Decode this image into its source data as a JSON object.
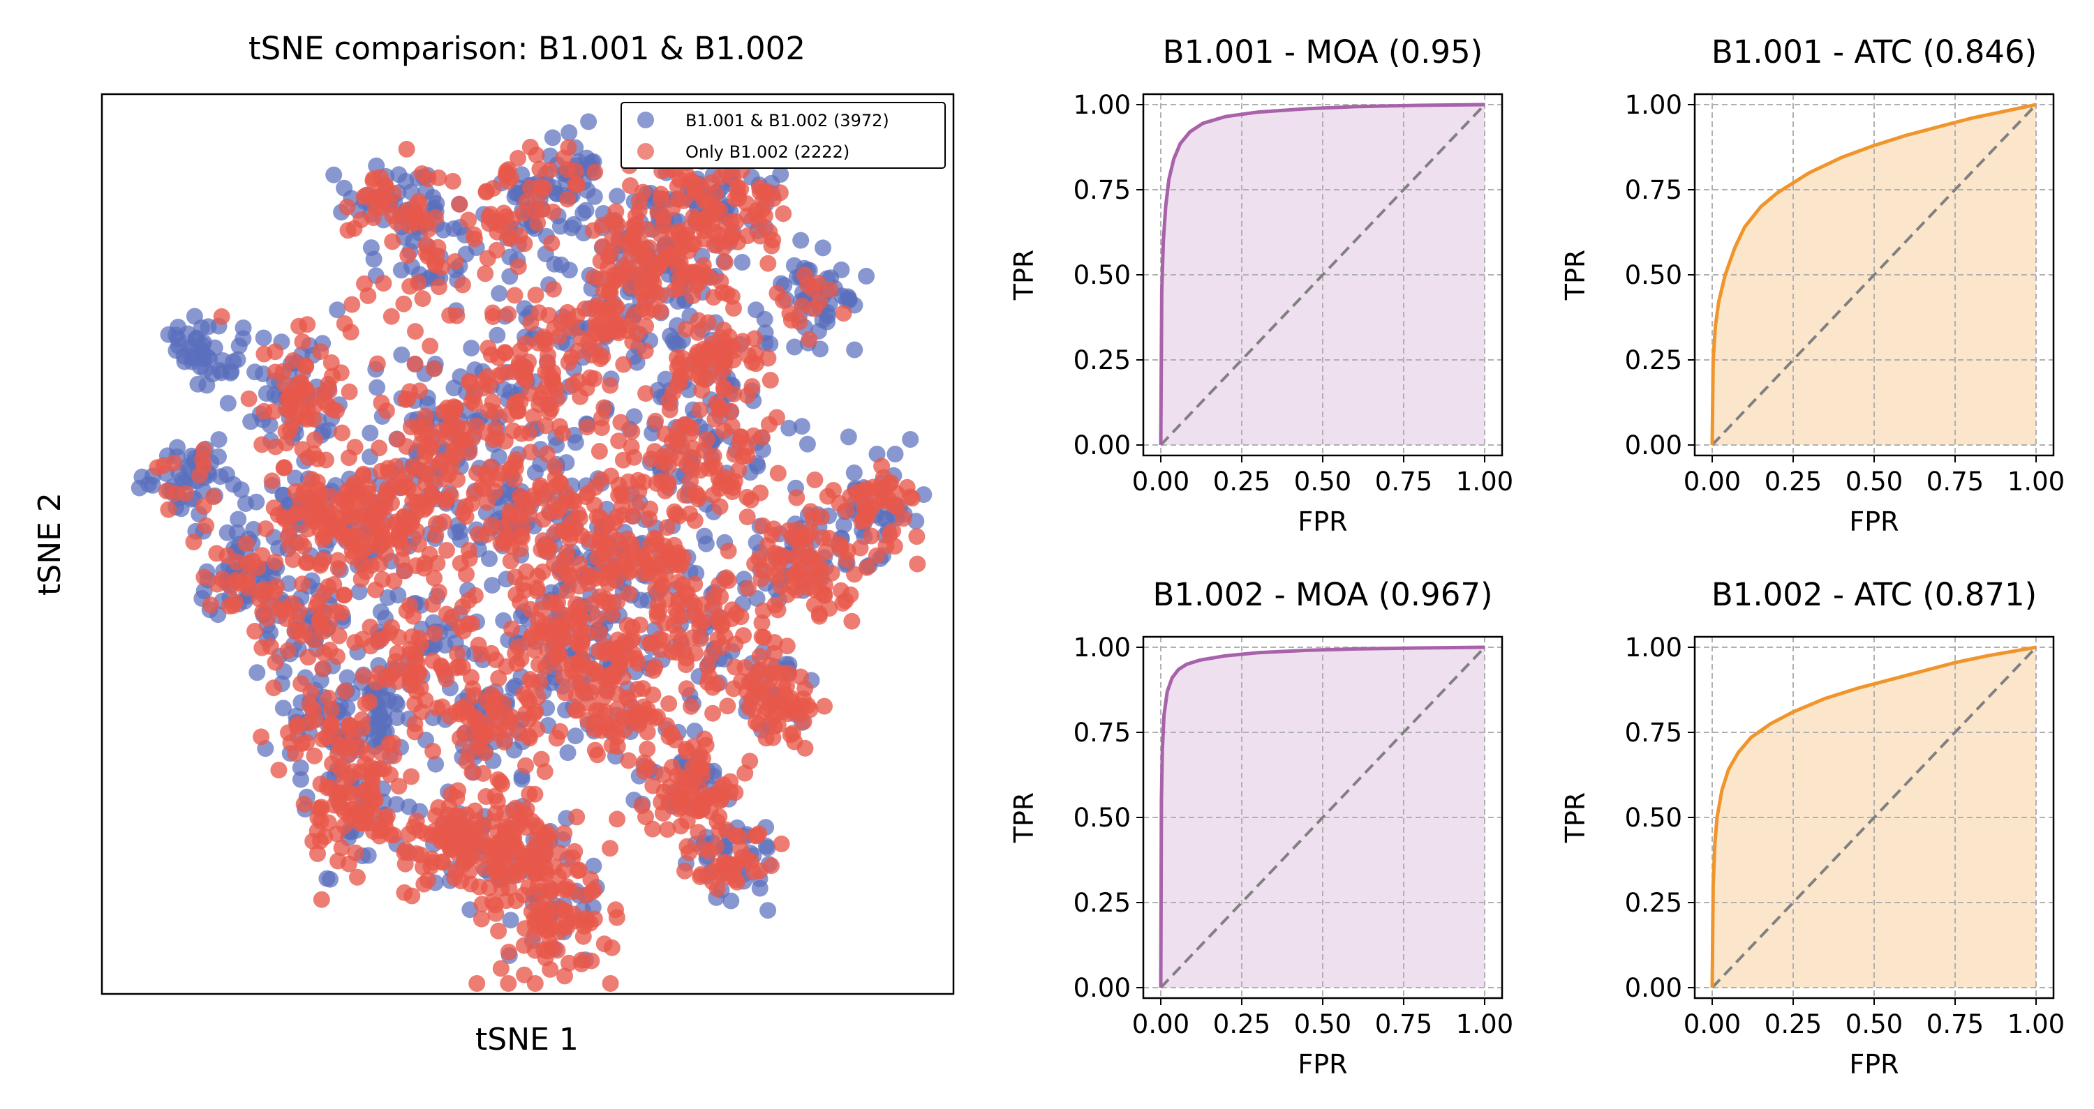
{
  "chart_data": [
    {
      "type": "scatter",
      "title": "tSNE comparison: B1.001 & B1.002",
      "xlabel": "tSNE 1",
      "ylabel": "tSNE 2",
      "ticks_visible": false,
      "legend_placement": "top-right",
      "series": [
        {
          "name": "B1.001 & B1.002 (3972)",
          "count": 3972,
          "color": "#5a6fbd"
        },
        {
          "name": "Only B1.002 (2222)",
          "count": 2222,
          "color": "#e8594a"
        }
      ]
    },
    {
      "type": "line",
      "title": "B1.001 - MOA (0.95)",
      "xlabel": "FPR",
      "ylabel": "TPR",
      "xlim": [
        0,
        1
      ],
      "ylim": [
        0,
        1
      ],
      "xticks": [
        "0.00",
        "0.25",
        "0.50",
        "0.75",
        "1.00"
      ],
      "yticks": [
        "0.00",
        "0.25",
        "0.50",
        "0.75",
        "1.00"
      ],
      "grid": true,
      "color": "#a862aa",
      "fill": "#efe0ef",
      "x": [
        0,
        0.003,
        0.008,
        0.015,
        0.025,
        0.04,
        0.06,
        0.09,
        0.13,
        0.2,
        0.3,
        0.45,
        0.6,
        0.8,
        1.0
      ],
      "y": [
        0,
        0.45,
        0.6,
        0.7,
        0.78,
        0.84,
        0.885,
        0.92,
        0.945,
        0.965,
        0.978,
        0.988,
        0.994,
        0.998,
        1.0
      ]
    },
    {
      "type": "line",
      "title": "B1.001 - ATC (0.846)",
      "xlabel": "FPR",
      "ylabel": "TPR",
      "xlim": [
        0,
        1
      ],
      "ylim": [
        0,
        1
      ],
      "xticks": [
        "0.00",
        "0.25",
        "0.50",
        "0.75",
        "1.00"
      ],
      "yticks": [
        "0.00",
        "0.25",
        "0.50",
        "0.75",
        "1.00"
      ],
      "grid": true,
      "color": "#f0952b",
      "fill": "#fbe6cc",
      "x": [
        0,
        0.003,
        0.01,
        0.02,
        0.04,
        0.07,
        0.1,
        0.15,
        0.2,
        0.3,
        0.4,
        0.5,
        0.6,
        0.7,
        0.8,
        0.9,
        1.0
      ],
      "y": [
        0,
        0.25,
        0.35,
        0.42,
        0.5,
        0.58,
        0.64,
        0.7,
        0.74,
        0.8,
        0.845,
        0.88,
        0.91,
        0.935,
        0.96,
        0.98,
        1.0
      ]
    },
    {
      "type": "line",
      "title": "B1.002 - MOA (0.967)",
      "xlabel": "FPR",
      "ylabel": "TPR",
      "xlim": [
        0,
        1
      ],
      "ylim": [
        0,
        1
      ],
      "xticks": [
        "0.00",
        "0.25",
        "0.50",
        "0.75",
        "1.00"
      ],
      "yticks": [
        "0.00",
        "0.25",
        "0.50",
        "0.75",
        "1.00"
      ],
      "grid": true,
      "color": "#a862aa",
      "fill": "#efe0ef",
      "x": [
        0,
        0.002,
        0.005,
        0.01,
        0.02,
        0.035,
        0.055,
        0.08,
        0.12,
        0.2,
        0.3,
        0.45,
        0.6,
        0.8,
        1.0
      ],
      "y": [
        0,
        0.55,
        0.7,
        0.8,
        0.87,
        0.91,
        0.935,
        0.95,
        0.962,
        0.975,
        0.984,
        0.991,
        0.995,
        0.998,
        1.0
      ]
    },
    {
      "type": "line",
      "title": "B1.002 - ATC (0.871)",
      "xlabel": "FPR",
      "ylabel": "TPR",
      "xlim": [
        0,
        1
      ],
      "ylim": [
        0,
        1
      ],
      "xticks": [
        "0.00",
        "0.25",
        "0.50",
        "0.75",
        "1.00"
      ],
      "yticks": [
        "0.00",
        "0.25",
        "0.50",
        "0.75",
        "1.00"
      ],
      "grid": true,
      "color": "#f0952b",
      "fill": "#fbe6cc",
      "x": [
        0,
        0.003,
        0.008,
        0.015,
        0.03,
        0.05,
        0.08,
        0.12,
        0.18,
        0.25,
        0.35,
        0.45,
        0.55,
        0.65,
        0.75,
        0.85,
        1.0
      ],
      "y": [
        0,
        0.3,
        0.42,
        0.5,
        0.58,
        0.64,
        0.69,
        0.735,
        0.775,
        0.81,
        0.85,
        0.88,
        0.905,
        0.93,
        0.955,
        0.975,
        1.0
      ]
    }
  ]
}
